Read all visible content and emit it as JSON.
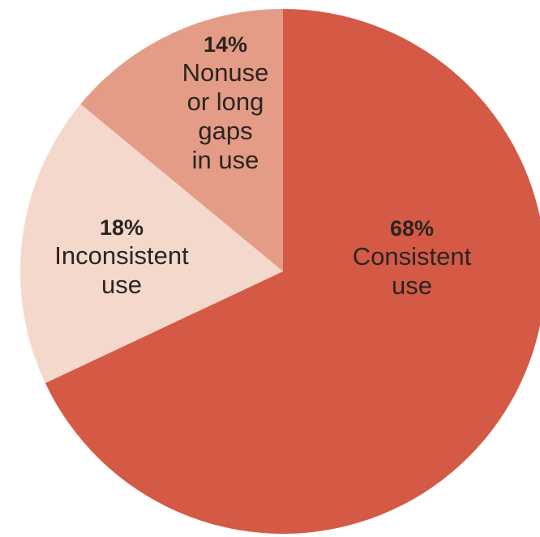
{
  "chart_data": {
    "type": "pie",
    "slices": [
      {
        "value": 68,
        "percent_label": "68%",
        "label": [
          "Consistent",
          "use"
        ],
        "color": "#d45a46"
      },
      {
        "value": 18,
        "percent_label": "18%",
        "label": [
          "Inconsistent",
          "use"
        ],
        "color": "#f4d8cc"
      },
      {
        "value": 14,
        "percent_label": "14%",
        "label": [
          "Nonuse",
          "or long",
          "gaps",
          "in use"
        ],
        "color": "#e49c86"
      }
    ],
    "start_at": "top",
    "direction": "clockwise"
  }
}
